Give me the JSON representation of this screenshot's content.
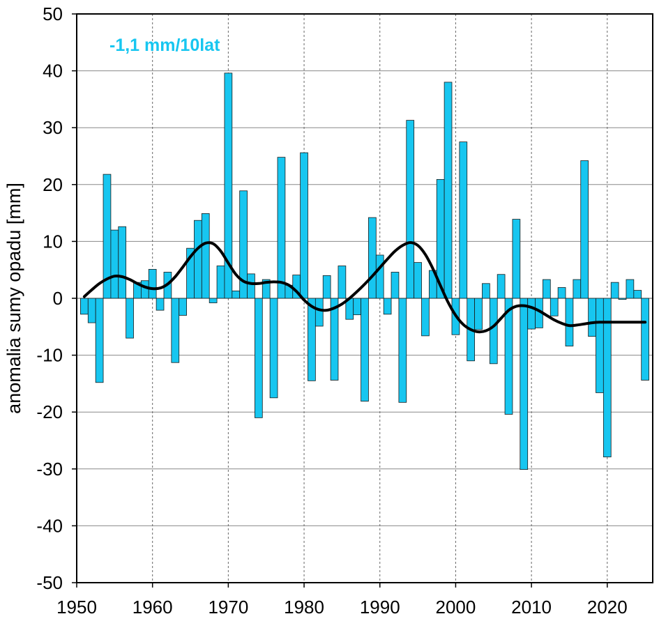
{
  "chart_data": {
    "type": "bar",
    "ylabel": "anomalia sumy opadu [mm]",
    "xlabel": "",
    "annotation": "-1,1 mm/10lat",
    "xlim": [
      1950,
      2026
    ],
    "ylim": [
      -50,
      50
    ],
    "x_ticks": [
      1950,
      1960,
      1970,
      1980,
      1990,
      2000,
      2010,
      2020
    ],
    "y_ticks": [
      50,
      40,
      30,
      20,
      10,
      0,
      -10,
      -20,
      -30,
      -40,
      -50
    ],
    "bar_color": "#17c6f0",
    "line_color": "#000000",
    "grid": true,
    "years": [
      1951,
      1952,
      1953,
      1954,
      1955,
      1956,
      1957,
      1958,
      1959,
      1960,
      1961,
      1962,
      1963,
      1964,
      1965,
      1966,
      1967,
      1968,
      1969,
      1970,
      1971,
      1972,
      1973,
      1974,
      1975,
      1976,
      1977,
      1978,
      1979,
      1980,
      1981,
      1982,
      1983,
      1984,
      1985,
      1986,
      1987,
      1988,
      1989,
      1990,
      1991,
      1992,
      1993,
      1994,
      1995,
      1996,
      1997,
      1998,
      1999,
      2000,
      2001,
      2002,
      2003,
      2004,
      2005,
      2006,
      2007,
      2008,
      2009,
      2010,
      2011,
      2012,
      2013,
      2014,
      2015,
      2016,
      2017,
      2018,
      2019,
      2020,
      2021,
      2022,
      2023,
      2024,
      2025
    ],
    "values": [
      -2.8,
      -4.3,
      -14.8,
      21.8,
      12.0,
      12.6,
      -7.0,
      2.8,
      3.1,
      5.1,
      -2.1,
      4.6,
      -11.3,
      -3.0,
      8.8,
      13.7,
      14.9,
      -0.8,
      5.7,
      39.6,
      1.3,
      18.9,
      4.3,
      -21.0,
      3.3,
      -17.5,
      24.8,
      2.3,
      4.1,
      25.6,
      -14.5,
      -4.9,
      4.0,
      -14.4,
      5.7,
      -3.7,
      -2.9,
      -18.1,
      14.2,
      7.6,
      -2.8,
      4.6,
      -18.3,
      31.3,
      6.3,
      -6.6,
      4.9,
      20.9,
      38.0,
      -6.4,
      27.5,
      -11.0,
      -5.5,
      2.6,
      -11.5,
      4.2,
      -20.4,
      13.9,
      -30.1,
      -5.4,
      -5.2,
      3.3,
      -3.1,
      1.9,
      -8.4,
      3.3,
      24.2,
      -6.7,
      -16.6,
      -27.9,
      2.8,
      -0.2,
      3.3,
      1.4,
      -14.4
    ],
    "smooth_x": [
      1951,
      1952,
      1953,
      1954,
      1955,
      1956,
      1957,
      1958,
      1959,
      1960,
      1961,
      1962,
      1963,
      1964,
      1965,
      1966,
      1967,
      1968,
      1969,
      1970,
      1971,
      1972,
      1973,
      1974,
      1975,
      1976,
      1977,
      1978,
      1979,
      1980,
      1981,
      1982,
      1983,
      1984,
      1985,
      1986,
      1987,
      1988,
      1989,
      1990,
      1991,
      1992,
      1993,
      1994,
      1995,
      1996,
      1997,
      1998,
      1999,
      2000,
      2001,
      2002,
      2003,
      2004,
      2005,
      2006,
      2007,
      2008,
      2009,
      2010,
      2011,
      2012,
      2013,
      2014,
      2015,
      2016,
      2017,
      2018,
      2019,
      2020,
      2021,
      2022,
      2023,
      2024,
      2025
    ],
    "smooth_y": [
      0.3,
      1.5,
      2.6,
      3.4,
      3.9,
      3.8,
      3.3,
      2.6,
      2.0,
      1.7,
      1.8,
      2.5,
      3.8,
      5.5,
      7.3,
      8.8,
      9.7,
      9.6,
      8.3,
      6.2,
      4.2,
      3.0,
      2.6,
      2.6,
      2.8,
      2.9,
      2.8,
      2.3,
      1.2,
      -0.3,
      -1.4,
      -2.0,
      -2.1,
      -1.7,
      -1.0,
      0.0,
      1.2,
      2.5,
      3.9,
      5.4,
      6.9,
      8.3,
      9.3,
      9.8,
      9.3,
      7.7,
      5.2,
      2.2,
      -0.7,
      -3.0,
      -4.6,
      -5.5,
      -5.9,
      -5.7,
      -4.9,
      -3.5,
      -2.1,
      -1.4,
      -1.3,
      -1.6,
      -2.2,
      -3.0,
      -3.8,
      -4.4,
      -4.8,
      -4.7,
      -4.5,
      -4.3,
      -4.2,
      -4.2,
      -4.2,
      -4.2,
      -4.2,
      -4.2,
      -4.2
    ]
  }
}
